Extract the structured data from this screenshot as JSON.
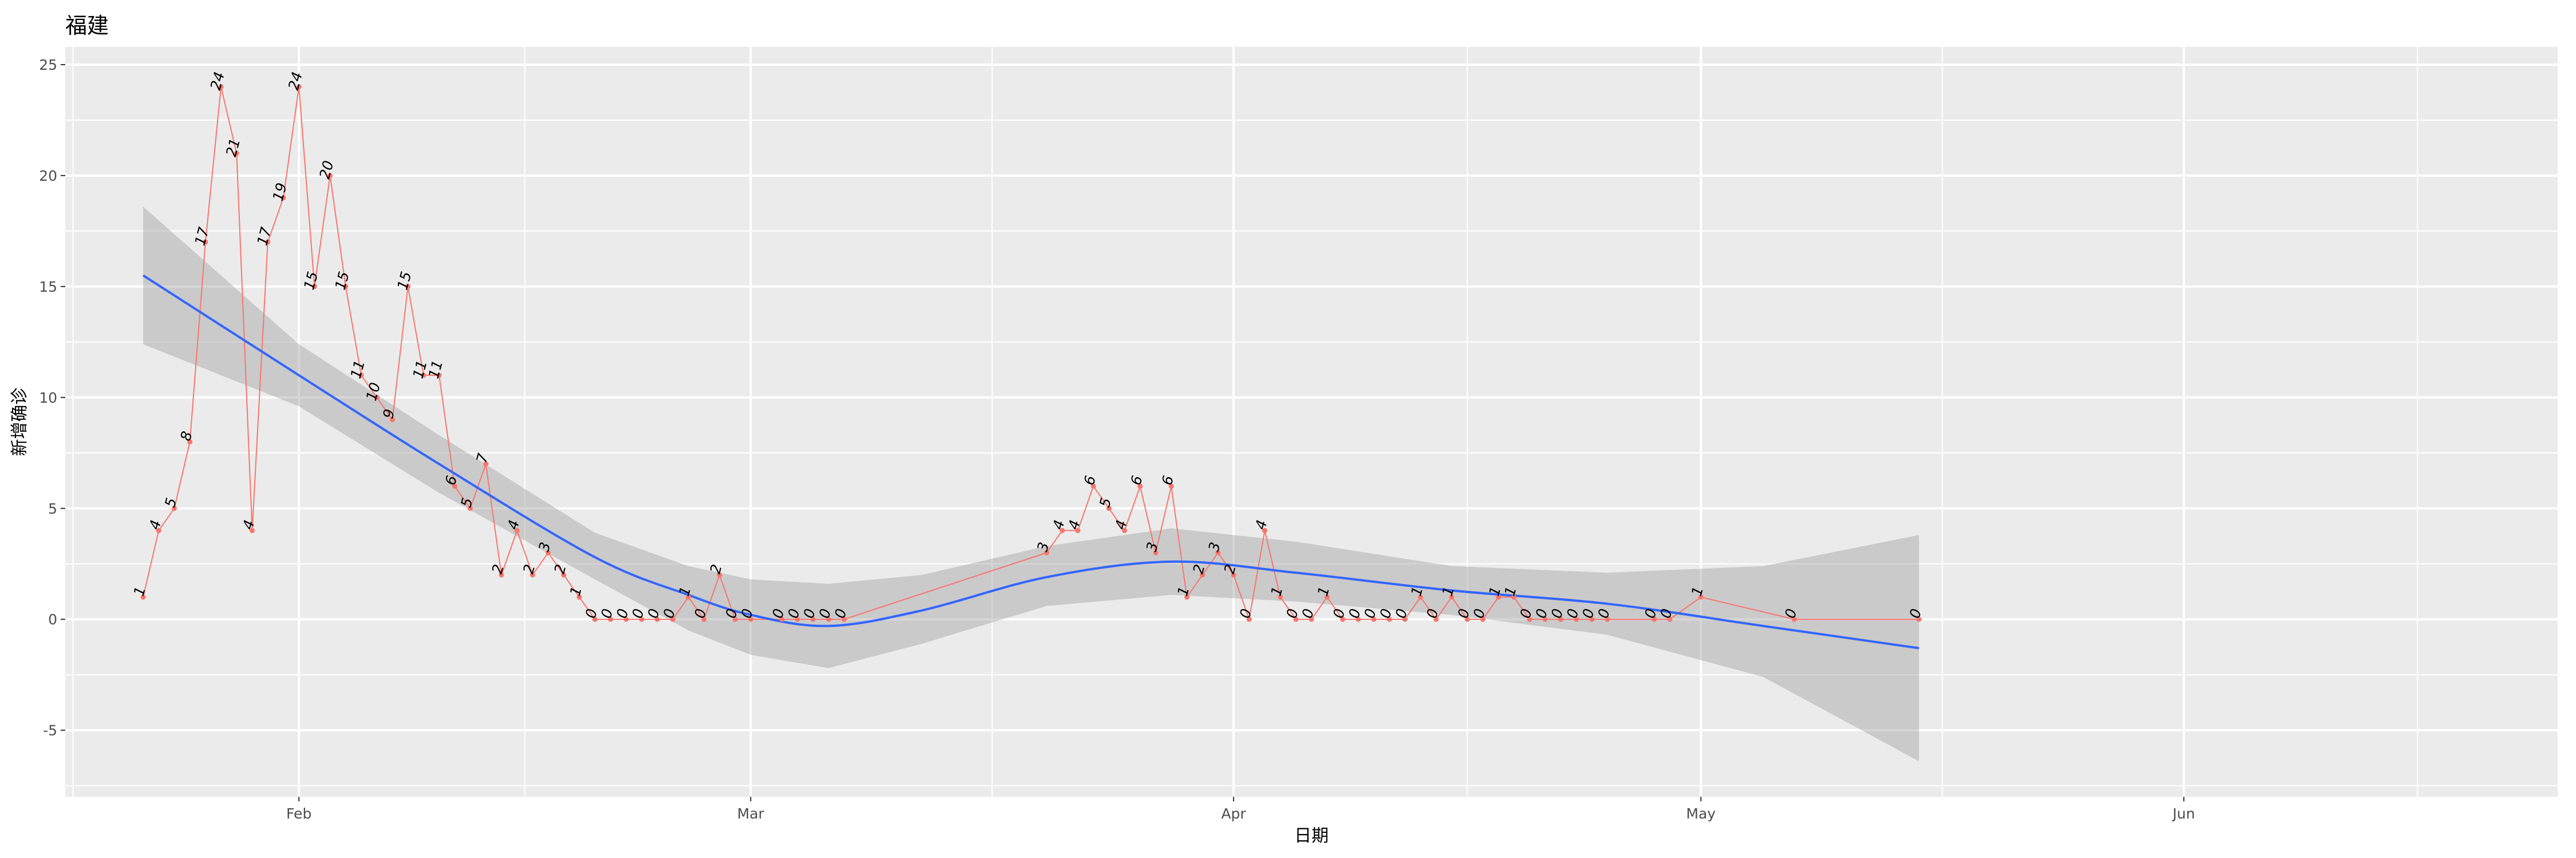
{
  "chart_data": {
    "type": "line",
    "title": "福建",
    "xlabel": "日期",
    "ylabel": "新增确诊",
    "x_ticks": [
      {
        "label": "Feb",
        "date": "2020-02-01"
      },
      {
        "label": "Mar",
        "date": "2020-03-01"
      },
      {
        "label": "Apr",
        "date": "2020-04-01"
      },
      {
        "label": "May",
        "date": "2020-05-01"
      },
      {
        "label": "Jun",
        "date": "2020-06-01"
      }
    ],
    "y_ticks": [
      -5,
      0,
      5,
      10,
      15,
      20,
      25
    ],
    "xlim": [
      "2020-01-17",
      "2020-06-25"
    ],
    "ylim": [
      -8,
      25.8
    ],
    "grid": true,
    "colors": {
      "panel": "#ebebeb",
      "grid": "#ffffff",
      "line": "#f8766d",
      "smooth": "#3366ff",
      "ribbon": "#999999"
    },
    "series": [
      {
        "x": [
          "2020-01-22",
          "2020-01-23",
          "2020-01-24",
          "2020-01-25",
          "2020-01-26",
          "2020-01-27",
          "2020-01-28",
          "2020-01-29",
          "2020-01-30",
          "2020-01-31",
          "2020-02-01",
          "2020-02-02",
          "2020-02-03",
          "2020-02-04",
          "2020-02-05",
          "2020-02-06",
          "2020-02-07",
          "2020-02-08",
          "2020-02-09",
          "2020-02-10",
          "2020-02-11",
          "2020-02-12",
          "2020-02-13",
          "2020-02-14",
          "2020-02-15",
          "2020-02-16",
          "2020-02-17",
          "2020-02-18",
          "2020-02-19",
          "2020-02-20",
          "2020-02-21",
          "2020-02-22",
          "2020-02-23",
          "2020-02-24",
          "2020-02-25",
          "2020-02-26",
          "2020-02-27",
          "2020-02-28",
          "2020-02-29",
          "2020-03-01",
          "2020-03-03",
          "2020-03-04",
          "2020-03-05",
          "2020-03-06",
          "2020-03-07",
          "2020-03-20",
          "2020-03-21",
          "2020-03-22",
          "2020-03-23",
          "2020-03-24",
          "2020-03-25",
          "2020-03-26",
          "2020-03-27",
          "2020-03-28",
          "2020-03-29",
          "2020-03-30",
          "2020-03-31",
          "2020-04-01",
          "2020-04-02",
          "2020-04-03",
          "2020-04-04",
          "2020-04-05",
          "2020-04-06",
          "2020-04-07",
          "2020-04-08",
          "2020-04-09",
          "2020-04-10",
          "2020-04-11",
          "2020-04-12",
          "2020-04-13",
          "2020-04-14",
          "2020-04-15",
          "2020-04-16",
          "2020-04-17",
          "2020-04-18",
          "2020-04-19",
          "2020-04-20",
          "2020-04-21",
          "2020-04-22",
          "2020-04-23",
          "2020-04-24",
          "2020-04-25",
          "2020-04-28",
          "2020-04-29",
          "2020-05-01",
          "2020-05-07",
          "2020-05-15"
        ],
        "y": [
          1,
          4,
          5,
          8,
          17,
          24,
          21,
          4,
          17,
          19,
          24,
          15,
          20,
          15,
          11,
          10,
          9,
          15,
          11,
          11,
          6,
          5,
          7,
          2,
          4,
          2,
          3,
          2,
          1,
          0,
          0,
          0,
          0,
          0,
          0,
          1,
          0,
          2,
          0,
          0,
          0,
          0,
          0,
          0,
          0,
          3,
          4,
          4,
          6,
          5,
          4,
          6,
          3,
          6,
          1,
          2,
          3,
          2,
          0,
          4,
          1,
          0,
          0,
          1,
          0,
          0,
          0,
          0,
          0,
          1,
          0,
          1,
          0,
          0,
          1,
          1,
          0,
          0,
          0,
          0,
          0,
          0,
          0,
          0,
          1,
          0,
          0
        ]
      }
    ],
    "smooth": {
      "x": [
        "2020-01-22",
        "2020-02-01",
        "2020-02-10",
        "2020-02-20",
        "2020-02-26",
        "2020-03-01",
        "2020-03-06",
        "2020-03-12",
        "2020-03-20",
        "2020-03-28",
        "2020-04-05",
        "2020-04-15",
        "2020-04-25",
        "2020-05-05",
        "2020-05-15"
      ],
      "y": [
        15.5,
        11.0,
        7.0,
        2.8,
        1.1,
        0.2,
        -0.3,
        0.4,
        1.9,
        2.6,
        2.1,
        1.3,
        0.7,
        -0.3,
        -1.3
      ],
      "lower": [
        12.4,
        9.6,
        5.7,
        1.8,
        -0.5,
        -1.6,
        -2.2,
        -1.1,
        0.6,
        1.1,
        0.8,
        0.2,
        -0.7,
        -2.6,
        -6.4
      ],
      "upper": [
        18.6,
        12.4,
        8.3,
        3.9,
        2.4,
        1.8,
        1.6,
        2.0,
        3.3,
        4.1,
        3.5,
        2.4,
        2.1,
        2.4,
        3.8
      ]
    }
  }
}
